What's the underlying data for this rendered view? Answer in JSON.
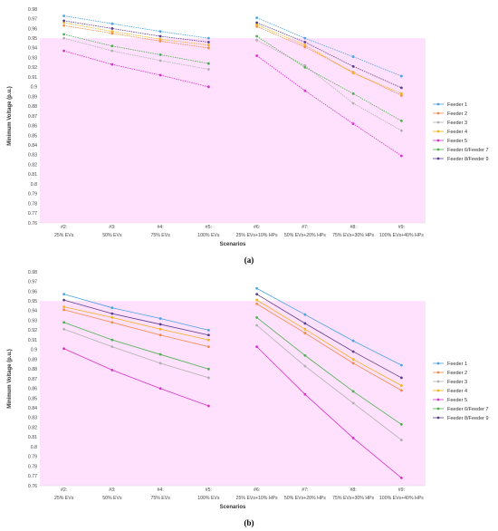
{
  "chart_data": [
    {
      "type": "line",
      "panel_label": "(a)",
      "title": "",
      "xlabel": "Scenarios",
      "ylabel": "Minimum Voltage (p.u.)",
      "ylim": [
        0.76,
        0.98
      ],
      "ytick_step": 0.01,
      "grid": false,
      "legend_position": "right",
      "highlight_band": {
        "from": 0.76,
        "to": 0.95,
        "color": "#ffe0fd"
      },
      "categories": [
        "#2:\n25% EVs",
        "#3:\n50% EVs",
        "#4:\n75% EVs",
        "#5:\n100% EVs",
        "#6:\n25% EVs+10% HPs",
        "#7:\n50% EVs+20% HPs",
        "#8:\n75% EVs+30% HPs",
        "#9:\n100% EVs+40% HPs"
      ],
      "segments": [
        [
          0,
          1,
          2,
          3
        ],
        [
          4,
          5,
          6,
          7
        ]
      ],
      "series": [
        {
          "name": "Feeder 1",
          "color": "#4aa3df",
          "values": [
            0.973,
            0.965,
            0.957,
            0.95,
            0.971,
            0.95,
            0.931,
            0.911
          ]
        },
        {
          "name": "Feeder 2",
          "color": "#f08a48",
          "values": [
            0.963,
            0.955,
            0.947,
            0.94,
            0.962,
            0.941,
            0.915,
            0.891
          ]
        },
        {
          "name": "Feeder 3",
          "color": "#b0b0b0",
          "values": [
            0.95,
            0.937,
            0.927,
            0.918,
            0.948,
            0.922,
            0.883,
            0.855
          ]
        },
        {
          "name": "Feeder 4",
          "color": "#f2b21c",
          "values": [
            0.966,
            0.957,
            0.949,
            0.943,
            0.964,
            0.943,
            0.914,
            0.893
          ]
        },
        {
          "name": "Feeder 5",
          "color": "#d633c9",
          "values": [
            0.937,
            0.923,
            0.912,
            0.9,
            0.932,
            0.896,
            0.862,
            0.829
          ]
        },
        {
          "name": "Feeder 6/Feeder 7",
          "color": "#4cb04e",
          "values": [
            0.954,
            0.942,
            0.933,
            0.924,
            0.952,
            0.92,
            0.893,
            0.865
          ]
        },
        {
          "name": "Feeder 8/Feeder 9",
          "color": "#5b3e8a",
          "values": [
            0.968,
            0.96,
            0.952,
            0.946,
            0.966,
            0.946,
            0.921,
            0.899
          ]
        }
      ]
    },
    {
      "type": "line",
      "panel_label": "(b)",
      "title": "",
      "xlabel": "Scenarios",
      "ylabel": "Minimum Voltage (p.u.)",
      "ylim": [
        0.76,
        0.98
      ],
      "ytick_step": 0.01,
      "grid": false,
      "legend_position": "right",
      "highlight_band": {
        "from": 0.76,
        "to": 0.95,
        "color": "#ffe0fd"
      },
      "categories": [
        "#2:\n25% EVs",
        "#3:\n50% EVs",
        "#4:\n75% EVs",
        "#5:\n100% EVs",
        "#6:\n25% EVs+10% HPs",
        "#7:\n50% EVs+20% HPs",
        "#8:\n75% EVs+30% HPs",
        "#9:\n100% EVs+40% HPs"
      ],
      "segments": [
        [
          0,
          1,
          2,
          3
        ],
        [
          4,
          5,
          6,
          7
        ]
      ],
      "series": [
        {
          "name": "Feeder 1",
          "color": "#4aa3df",
          "values": [
            0.957,
            0.943,
            0.932,
            0.92,
            0.963,
            0.936,
            0.909,
            0.884
          ]
        },
        {
          "name": "Feeder 2",
          "color": "#f08a48",
          "values": [
            0.941,
            0.928,
            0.915,
            0.903,
            0.947,
            0.917,
            0.886,
            0.858
          ]
        },
        {
          "name": "Feeder 3",
          "color": "#b0b0b0",
          "values": [
            0.921,
            0.903,
            0.886,
            0.871,
            0.925,
            0.883,
            0.845,
            0.807
          ]
        },
        {
          "name": "Feeder 4",
          "color": "#f2b21c",
          "values": [
            0.944,
            0.933,
            0.921,
            0.91,
            0.951,
            0.921,
            0.89,
            0.863
          ]
        },
        {
          "name": "Feeder 5",
          "color": "#d633c9",
          "values": [
            0.901,
            0.879,
            0.86,
            0.842,
            0.903,
            0.854,
            0.809,
            0.768
          ]
        },
        {
          "name": "Feeder 6/Feeder 7",
          "color": "#4cb04e",
          "values": [
            0.928,
            0.91,
            0.895,
            0.88,
            0.933,
            0.894,
            0.857,
            0.823
          ]
        },
        {
          "name": "Feeder 8/Feeder 9",
          "color": "#5b3e8a",
          "values": [
            0.951,
            0.937,
            0.926,
            0.915,
            0.957,
            0.927,
            0.898,
            0.871
          ]
        }
      ]
    }
  ]
}
